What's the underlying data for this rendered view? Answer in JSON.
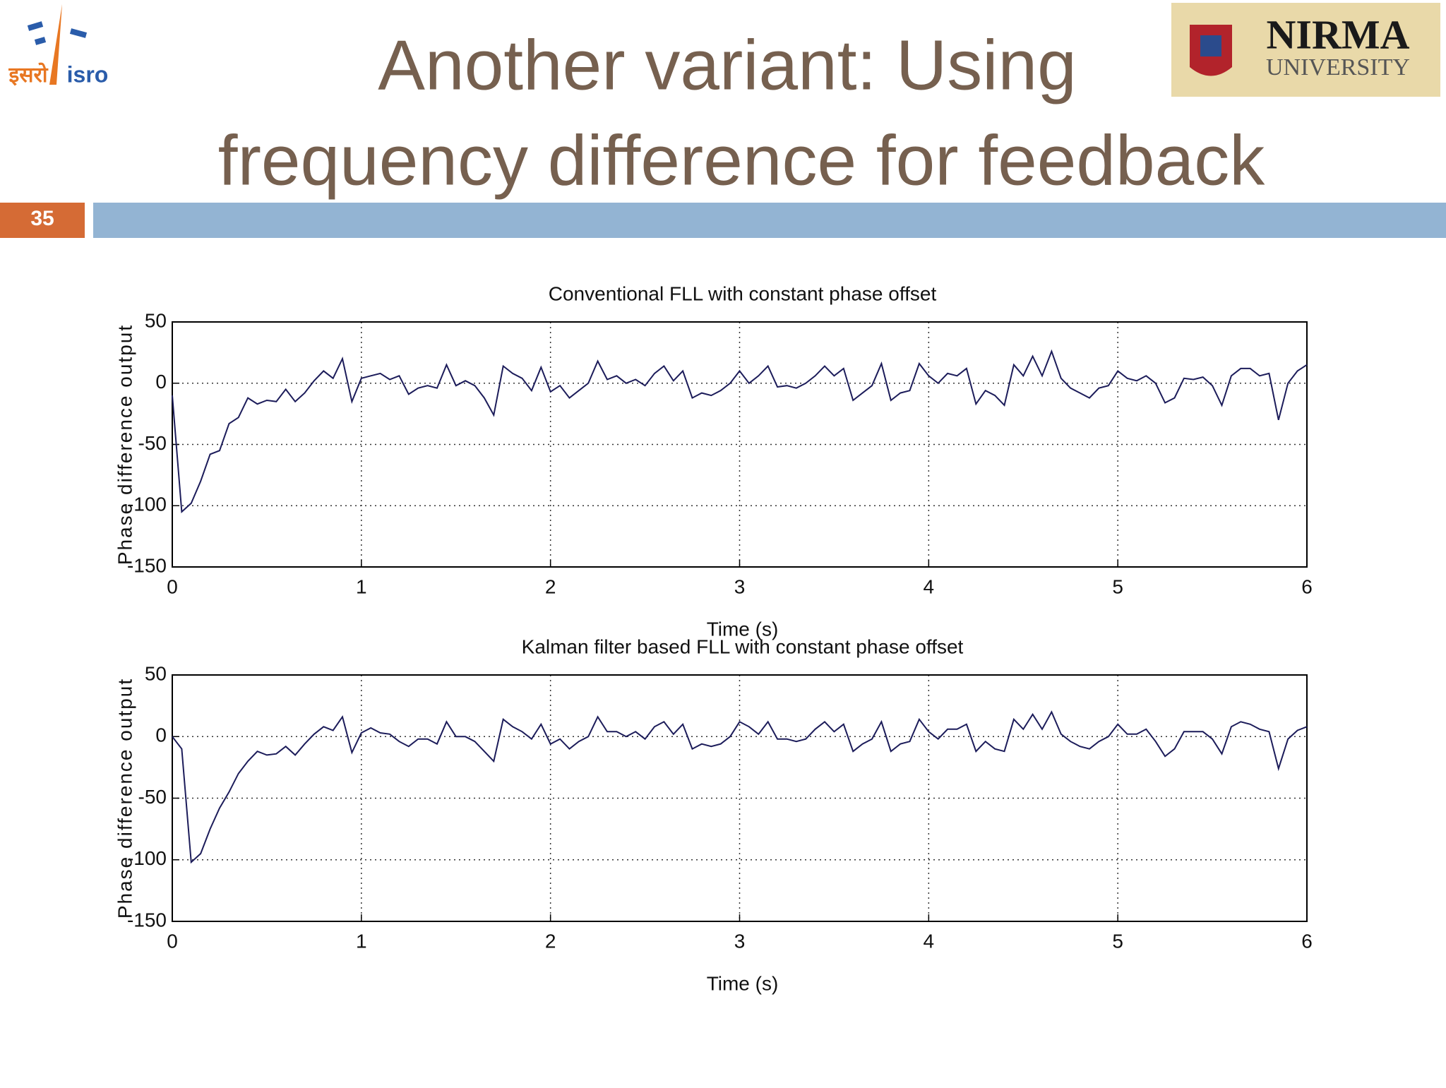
{
  "slide": {
    "title_line1": "Another variant: Using",
    "title_line2": "frequency difference for feedback",
    "number": "35"
  },
  "logos": {
    "isro_hindi": "इसरो",
    "isro": "isro",
    "nirma": "NIRMA",
    "university": "UNIVERSITY"
  },
  "chart_data": [
    {
      "type": "line",
      "title": "Conventional FLL with constant phase offset",
      "xlabel": "Time (s)",
      "ylabel": "Phase difference output",
      "color": "#1c1c5a",
      "grid": true,
      "xlim": [
        0,
        6
      ],
      "ylim": [
        -150,
        50
      ],
      "xticks": [
        0,
        1,
        2,
        3,
        4,
        5,
        6
      ],
      "yticks": [
        -150,
        -100,
        -50,
        0,
        50
      ],
      "x": [
        0,
        0.05,
        0.1,
        0.15,
        0.2,
        0.25,
        0.3,
        0.35,
        0.4,
        0.45,
        0.5,
        0.55,
        0.6,
        0.65,
        0.7,
        0.75,
        0.8,
        0.85,
        0.9,
        0.95,
        1,
        1.05,
        1.1,
        1.15,
        1.2,
        1.25,
        1.3,
        1.35,
        1.4,
        1.45,
        1.5,
        1.55,
        1.6,
        1.65,
        1.7,
        1.75,
        1.8,
        1.85,
        1.9,
        1.95,
        2,
        2.05,
        2.1,
        2.15,
        2.2,
        2.25,
        2.3,
        2.35,
        2.4,
        2.45,
        2.5,
        2.55,
        2.6,
        2.65,
        2.7,
        2.75,
        2.8,
        2.85,
        2.9,
        2.95,
        3,
        3.05,
        3.1,
        3.15,
        3.2,
        3.25,
        3.3,
        3.35,
        3.4,
        3.45,
        3.5,
        3.55,
        3.6,
        3.65,
        3.7,
        3.75,
        3.8,
        3.85,
        3.9,
        3.95,
        4,
        4.05,
        4.1,
        4.15,
        4.2,
        4.25,
        4.3,
        4.35,
        4.4,
        4.45,
        4.5,
        4.55,
        4.6,
        4.65,
        4.7,
        4.75,
        4.8,
        4.85,
        4.9,
        4.95,
        5,
        5.05,
        5.1,
        5.15,
        5.2,
        5.25,
        5.3,
        5.35,
        5.4,
        5.45,
        5.5,
        5.55,
        5.6,
        5.65,
        5.7,
        5.75,
        5.8,
        5.85,
        5.9,
        5.95,
        6
      ],
      "values": [
        -10,
        -105,
        -98,
        -80,
        -58,
        -55,
        -33,
        -28,
        -12,
        -17,
        -14,
        -15,
        -5,
        -15,
        -8,
        2,
        10,
        4,
        20,
        -15,
        4,
        6,
        8,
        3,
        6,
        -9,
        -4,
        -2,
        -4,
        15,
        -2,
        2,
        -2,
        -12,
        -26,
        14,
        8,
        4,
        -6,
        13,
        -7,
        -2,
        -12,
        -6,
        0,
        18,
        3,
        6,
        0,
        3,
        -2,
        8,
        14,
        2,
        10,
        -12,
        -8,
        -10,
        -6,
        0,
        10,
        0,
        6,
        14,
        -3,
        -2,
        -4,
        0,
        6,
        14,
        6,
        12,
        -14,
        -8,
        -2,
        16,
        -14,
        -8,
        -6,
        16,
        6,
        0,
        8,
        6,
        12,
        -17,
        -6,
        -10,
        -18,
        15,
        6,
        22,
        6,
        26,
        4,
        -4,
        -8,
        -12,
        -4,
        -2,
        10,
        4,
        2,
        6,
        0,
        -16,
        -12,
        4,
        3,
        5,
        -2,
        -18,
        6,
        12,
        12,
        6,
        8,
        -30,
        0,
        10,
        15
      ]
    },
    {
      "type": "line",
      "title": "Kalman filter based FLL with constant phase offset",
      "xlabel": "Time (s)",
      "ylabel": "Phase difference output",
      "color": "#1c1c5a",
      "grid": true,
      "xlim": [
        0,
        6
      ],
      "ylim": [
        -150,
        50
      ],
      "xticks": [
        0,
        1,
        2,
        3,
        4,
        5,
        6
      ],
      "yticks": [
        -150,
        -100,
        -50,
        0,
        50
      ],
      "x": [
        0,
        0.05,
        0.1,
        0.15,
        0.2,
        0.25,
        0.3,
        0.35,
        0.4,
        0.45,
        0.5,
        0.55,
        0.6,
        0.65,
        0.7,
        0.75,
        0.8,
        0.85,
        0.9,
        0.95,
        1,
        1.05,
        1.1,
        1.15,
        1.2,
        1.25,
        1.3,
        1.35,
        1.4,
        1.45,
        1.5,
        1.55,
        1.6,
        1.65,
        1.7,
        1.75,
        1.8,
        1.85,
        1.9,
        1.95,
        2,
        2.05,
        2.1,
        2.15,
        2.2,
        2.25,
        2.3,
        2.35,
        2.4,
        2.45,
        2.5,
        2.55,
        2.6,
        2.65,
        2.7,
        2.75,
        2.8,
        2.85,
        2.9,
        2.95,
        3,
        3.05,
        3.1,
        3.15,
        3.2,
        3.25,
        3.3,
        3.35,
        3.4,
        3.45,
        3.5,
        3.55,
        3.6,
        3.65,
        3.7,
        3.75,
        3.8,
        3.85,
        3.9,
        3.95,
        4,
        4.05,
        4.1,
        4.15,
        4.2,
        4.25,
        4.3,
        4.35,
        4.4,
        4.45,
        4.5,
        4.55,
        4.6,
        4.65,
        4.7,
        4.75,
        4.8,
        4.85,
        4.9,
        4.95,
        5,
        5.05,
        5.1,
        5.15,
        5.2,
        5.25,
        5.3,
        5.35,
        5.4,
        5.45,
        5.5,
        5.55,
        5.6,
        5.65,
        5.7,
        5.75,
        5.8,
        5.85,
        5.9,
        5.95,
        6
      ],
      "values": [
        0,
        -10,
        -102,
        -95,
        -75,
        -58,
        -45,
        -30,
        -20,
        -12,
        -15,
        -14,
        -8,
        -15,
        -6,
        2,
        8,
        5,
        16,
        -13,
        3,
        7,
        3,
        2,
        -4,
        -8,
        -2,
        -2,
        -6,
        12,
        0,
        0,
        -4,
        -12,
        -20,
        14,
        8,
        4,
        -2,
        10,
        -6,
        -2,
        -10,
        -4,
        0,
        16,
        4,
        4,
        0,
        4,
        -2,
        8,
        12,
        2,
        10,
        -10,
        -6,
        -8,
        -6,
        0,
        12,
        8,
        2,
        12,
        -2,
        -2,
        -4,
        -2,
        6,
        12,
        4,
        10,
        -12,
        -6,
        -2,
        12,
        -12,
        -6,
        -4,
        14,
        4,
        -2,
        6,
        6,
        10,
        -12,
        -4,
        -10,
        -12,
        14,
        6,
        18,
        6,
        20,
        2,
        -4,
        -8,
        -10,
        -4,
        0,
        10,
        2,
        2,
        6,
        -4,
        -16,
        -10,
        4,
        4,
        4,
        -2,
        -14,
        8,
        12,
        10,
        6,
        4,
        -26,
        -2,
        5,
        8
      ]
    }
  ]
}
